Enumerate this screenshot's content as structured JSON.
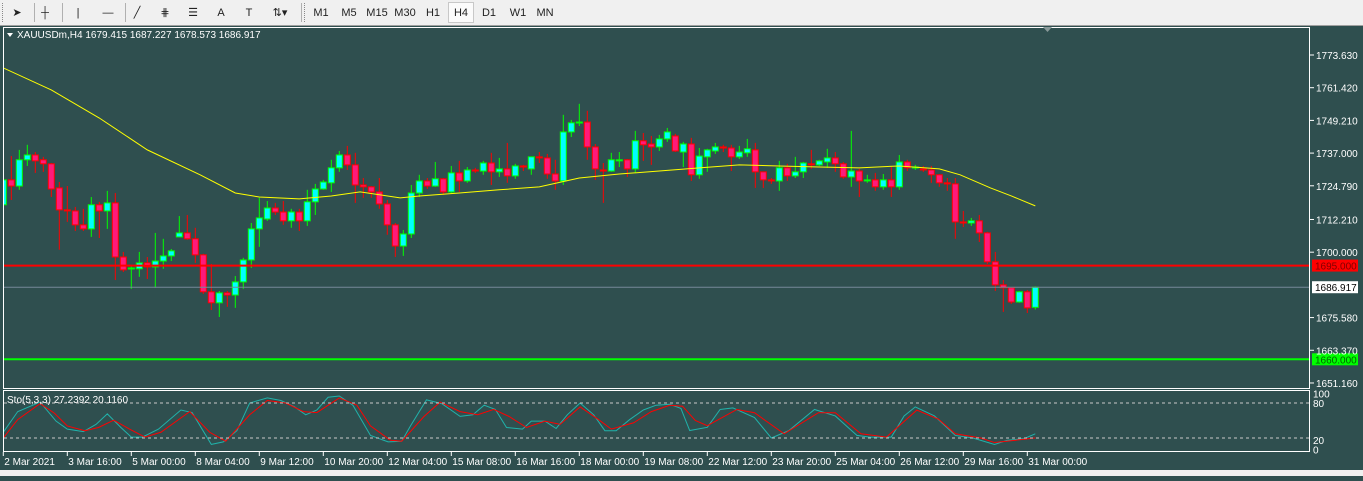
{
  "toolbar": {
    "tools": [
      {
        "name": "cursor-icon",
        "glyph": "➤"
      },
      {
        "name": "crosshair-icon",
        "glyph": "┼"
      },
      {
        "name": "vertical-line-icon",
        "glyph": "|"
      },
      {
        "name": "horizontal-line-icon",
        "glyph": "—"
      },
      {
        "name": "trendline-icon",
        "glyph": "╱"
      },
      {
        "name": "fibonacci-channel-icon",
        "glyph": "⋕"
      },
      {
        "name": "fibonacci-retracement-icon",
        "glyph": "☰"
      },
      {
        "name": "text-icon",
        "glyph": "A"
      },
      {
        "name": "text-label-icon",
        "glyph": "T"
      },
      {
        "name": "arrows-dropdown-icon",
        "glyph": "⇅▾"
      }
    ],
    "timeframes": [
      "M1",
      "M5",
      "M15",
      "M30",
      "H1",
      "H4",
      "D1",
      "W1",
      "MN"
    ],
    "active_timeframe": "H4"
  },
  "chart": {
    "header": "XAUUSDm,H4  1679.415 1687.227 1678.573 1686.917",
    "colors": {
      "background": "#2f4f4f",
      "bull_body": "#00ffff",
      "bull_outline": "#00ff00",
      "bear_body": "#ff1a7a",
      "bear_outline": "#ff0000",
      "ma": "#ffff00",
      "stoch_main": "#20b2aa",
      "stoch_signal": "#ff0000",
      "grid_text": "#ffffff"
    },
    "price_axis_labels": [
      "1773.630",
      "1761.420",
      "1749.210",
      "1737.000",
      "1724.790",
      "1712.210",
      "1700.000",
      "1675.580",
      "1663.370",
      "1651.160"
    ],
    "levels": [
      {
        "name": "resistance-line",
        "price": 1695.0,
        "label": "1695.000",
        "color": "#ff0000",
        "text_color": "#800000"
      },
      {
        "name": "current-price-line",
        "price": 1686.917,
        "label": "1686.917",
        "color": "#778899",
        "text_color": "#000000",
        "label_bg": "#ffffff"
      },
      {
        "name": "support-line",
        "price": 1660.0,
        "label": "1660.000",
        "color": "#00ff00",
        "text_color": "#006400"
      }
    ],
    "time_labels": [
      "2 Mar 2021",
      "3 Mar 16:00",
      "5 Mar 00:00",
      "8 Mar 04:00",
      "9 Mar 12:00",
      "10 Mar 20:00",
      "12 Mar 04:00",
      "15 Mar 08:00",
      "16 Mar 16:00",
      "18 Mar 00:00",
      "19 Mar 08:00",
      "22 Mar 12:00",
      "23 Mar 20:00",
      "25 Mar 04:00",
      "26 Mar 12:00",
      "29 Mar 16:00",
      "31 Mar 00:00"
    ],
    "candles_ohlc": [
      [
        1717.7,
        1733.3,
        1715.0,
        1727.0
      ],
      [
        1727.0,
        1735.9,
        1719.5,
        1724.7
      ],
      [
        1724.7,
        1738.2,
        1723.3,
        1734.5
      ],
      [
        1734.5,
        1740.1,
        1732.2,
        1736.3
      ],
      [
        1736.3,
        1737.4,
        1729.6,
        1734.1
      ],
      [
        1734.5,
        1735.6,
        1730.0,
        1733.0
      ],
      [
        1733.0,
        1733.3,
        1720.6,
        1723.6
      ],
      [
        1724.0,
        1726.2,
        1700.9,
        1715.8
      ],
      [
        1715.8,
        1724.7,
        1711.3,
        1715.4
      ],
      [
        1715.4,
        1716.9,
        1707.9,
        1710.2
      ],
      [
        1710.2,
        1716.2,
        1707.9,
        1708.7
      ],
      [
        1708.7,
        1720.6,
        1705.7,
        1717.7
      ],
      [
        1717.7,
        1718.8,
        1705.3,
        1715.4
      ],
      [
        1715.4,
        1722.9,
        1708.7,
        1718.4
      ],
      [
        1718.4,
        1722.1,
        1689.6,
        1698.2
      ],
      [
        1698.2,
        1700.1,
        1692.6,
        1693.4
      ],
      [
        1693.8,
        1695.2,
        1686.3,
        1694.1
      ],
      [
        1693.8,
        1700.1,
        1690.8,
        1696.0
      ],
      [
        1696.0,
        1698.2,
        1690.0,
        1694.5
      ],
      [
        1694.5,
        1707.2,
        1686.7,
        1696.7
      ],
      [
        1696.7,
        1705.0,
        1693.8,
        1698.6
      ],
      [
        1698.6,
        1701.2,
        1696.7,
        1700.5
      ],
      [
        1705.7,
        1713.5,
        1705.7,
        1707.2
      ],
      [
        1707.2,
        1713.9,
        1704.6,
        1705.0
      ],
      [
        1705.0,
        1709.1,
        1696.0,
        1699.0
      ],
      [
        1699.0,
        1699.4,
        1684.4,
        1685.2
      ],
      [
        1685.2,
        1695.6,
        1678.4,
        1681.1
      ],
      [
        1681.1,
        1685.5,
        1675.8,
        1684.8
      ],
      [
        1684.8,
        1685.5,
        1679.6,
        1684.0
      ],
      [
        1684.0,
        1691.1,
        1679.2,
        1688.9
      ],
      [
        1688.9,
        1697.9,
        1686.3,
        1697.1
      ],
      [
        1697.1,
        1710.9,
        1694.1,
        1708.7
      ],
      [
        1708.7,
        1720.3,
        1702.0,
        1712.8
      ],
      [
        1712.4,
        1719.1,
        1711.7,
        1716.5
      ],
      [
        1716.5,
        1718.4,
        1713.9,
        1715.0
      ],
      [
        1715.0,
        1719.1,
        1710.2,
        1711.7
      ],
      [
        1711.7,
        1716.2,
        1709.1,
        1715.0
      ],
      [
        1715.0,
        1716.2,
        1707.9,
        1711.7
      ],
      [
        1711.7,
        1723.3,
        1709.8,
        1718.8
      ],
      [
        1718.8,
        1725.5,
        1713.9,
        1723.6
      ],
      [
        1723.6,
        1727.0,
        1723.3,
        1726.2
      ],
      [
        1725.9,
        1734.5,
        1722.5,
        1731.5
      ],
      [
        1731.5,
        1737.8,
        1730.0,
        1736.3
      ],
      [
        1736.3,
        1739.7,
        1730.7,
        1732.6
      ],
      [
        1732.6,
        1737.1,
        1718.4,
        1725.1
      ],
      [
        1725.1,
        1727.7,
        1720.3,
        1724.4
      ],
      [
        1724.4,
        1724.7,
        1720.3,
        1722.5
      ],
      [
        1722.5,
        1727.7,
        1716.2,
        1718.0
      ],
      [
        1718.0,
        1719.5,
        1706.5,
        1710.2
      ],
      [
        1710.2,
        1710.9,
        1698.2,
        1702.3
      ],
      [
        1702.3,
        1708.3,
        1698.6,
        1706.8
      ],
      [
        1706.8,
        1725.1,
        1705.3,
        1722.1
      ],
      [
        1722.1,
        1728.9,
        1720.6,
        1726.6
      ],
      [
        1726.6,
        1727.7,
        1723.6,
        1724.7
      ],
      [
        1724.7,
        1733.7,
        1724.4,
        1727.4
      ],
      [
        1727.4,
        1727.7,
        1721.4,
        1722.5
      ],
      [
        1722.5,
        1732.2,
        1722.1,
        1729.6
      ],
      [
        1729.6,
        1734.1,
        1722.5,
        1726.6
      ],
      [
        1726.6,
        1731.8,
        1725.9,
        1730.7
      ],
      [
        1730.7,
        1731.5,
        1729.6,
        1730.3
      ],
      [
        1730.3,
        1734.1,
        1728.9,
        1733.3
      ],
      [
        1733.3,
        1737.1,
        1725.1,
        1730.0
      ],
      [
        1730.0,
        1735.2,
        1728.1,
        1731.1
      ],
      [
        1731.1,
        1740.8,
        1725.9,
        1728.5
      ],
      [
        1728.5,
        1733.0,
        1727.4,
        1732.2
      ],
      [
        1732.2,
        1732.6,
        1730.3,
        1731.8
      ],
      [
        1731.1,
        1735.6,
        1728.9,
        1735.6
      ],
      [
        1735.6,
        1737.4,
        1733.3,
        1735.2
      ],
      [
        1735.2,
        1736.7,
        1727.4,
        1729.2
      ],
      [
        1729.2,
        1734.5,
        1723.3,
        1726.6
      ],
      [
        1726.6,
        1751.3,
        1725.1,
        1744.9
      ],
      [
        1744.9,
        1749.4,
        1743.0,
        1748.3
      ],
      [
        1748.3,
        1755.4,
        1747.1,
        1748.6
      ],
      [
        1748.6,
        1752.8,
        1734.5,
        1739.3
      ],
      [
        1739.3,
        1740.4,
        1727.0,
        1731.1
      ],
      [
        1730.7,
        1733.3,
        1718.4,
        1730.3
      ],
      [
        1730.3,
        1737.1,
        1730.0,
        1734.5
      ],
      [
        1734.1,
        1737.4,
        1731.8,
        1734.5
      ],
      [
        1734.5,
        1734.8,
        1728.1,
        1731.1
      ],
      [
        1731.1,
        1745.3,
        1729.6,
        1741.6
      ],
      [
        1741.6,
        1744.5,
        1734.1,
        1740.1
      ],
      [
        1740.4,
        1743.4,
        1732.6,
        1739.3
      ],
      [
        1739.3,
        1743.8,
        1737.8,
        1742.3
      ],
      [
        1742.3,
        1746.4,
        1741.2,
        1744.9
      ],
      [
        1743.4,
        1744.2,
        1737.4,
        1737.8
      ],
      [
        1737.4,
        1741.2,
        1731.8,
        1740.4
      ],
      [
        1740.4,
        1742.7,
        1726.6,
        1728.9
      ],
      [
        1728.9,
        1738.9,
        1727.4,
        1735.9
      ],
      [
        1735.6,
        1738.6,
        1730.0,
        1738.2
      ],
      [
        1737.8,
        1740.8,
        1736.7,
        1739.3
      ],
      [
        1739.3,
        1740.1,
        1737.4,
        1738.9
      ],
      [
        1738.9,
        1740.1,
        1730.3,
        1735.6
      ],
      [
        1735.6,
        1739.7,
        1734.8,
        1737.4
      ],
      [
        1737.1,
        1742.3,
        1735.6,
        1738.6
      ],
      [
        1738.2,
        1740.8,
        1724.0,
        1730.0
      ],
      [
        1730.0,
        1730.0,
        1724.0,
        1727.0
      ],
      [
        1727.0,
        1727.7,
        1725.5,
        1726.6
      ],
      [
        1726.6,
        1734.1,
        1722.9,
        1731.5
      ],
      [
        1731.5,
        1733.0,
        1726.6,
        1728.5
      ],
      [
        1728.5,
        1735.6,
        1727.7,
        1730.0
      ],
      [
        1730.0,
        1733.7,
        1727.7,
        1733.3
      ],
      [
        1733.0,
        1738.2,
        1731.1,
        1732.6
      ],
      [
        1732.6,
        1734.5,
        1732.2,
        1734.1
      ],
      [
        1733.7,
        1738.6,
        1731.5,
        1735.2
      ],
      [
        1735.2,
        1737.4,
        1730.0,
        1733.0
      ],
      [
        1733.0,
        1733.7,
        1727.4,
        1728.1
      ],
      [
        1728.1,
        1745.3,
        1724.4,
        1730.3
      ],
      [
        1730.3,
        1731.1,
        1720.6,
        1726.6
      ],
      [
        1726.6,
        1728.9,
        1725.9,
        1727.0
      ],
      [
        1727.0,
        1729.6,
        1722.9,
        1724.4
      ],
      [
        1724.4,
        1729.2,
        1723.3,
        1727.0
      ],
      [
        1727.0,
        1731.8,
        1720.6,
        1724.4
      ],
      [
        1724.4,
        1736.3,
        1723.3,
        1733.7
      ],
      [
        1733.7,
        1734.5,
        1730.3,
        1731.5
      ],
      [
        1731.5,
        1732.6,
        1730.7,
        1731.8
      ],
      [
        1731.1,
        1732.2,
        1730.0,
        1730.7
      ],
      [
        1730.7,
        1732.2,
        1725.9,
        1728.9
      ],
      [
        1728.9,
        1729.2,
        1724.4,
        1725.9
      ],
      [
        1725.9,
        1727.7,
        1722.9,
        1725.5
      ],
      [
        1725.5,
        1727.7,
        1705.0,
        1711.3
      ],
      [
        1711.3,
        1715.4,
        1709.4,
        1710.9
      ],
      [
        1710.9,
        1712.8,
        1709.8,
        1711.7
      ],
      [
        1711.7,
        1713.9,
        1703.8,
        1707.2
      ],
      [
        1707.2,
        1707.6,
        1695.6,
        1696.4
      ],
      [
        1696.4,
        1700.1,
        1685.5,
        1687.8
      ],
      [
        1687.8,
        1689.6,
        1677.7,
        1686.7
      ],
      [
        1686.7,
        1686.7,
        1680.7,
        1681.4
      ],
      [
        1681.4,
        1685.5,
        1681.1,
        1685.2
      ],
      [
        1685.2,
        1685.9,
        1677.3,
        1679.2
      ],
      [
        1679.415,
        1687.227,
        1678.573,
        1686.917
      ]
    ],
    "moving_average": [
      [
        0,
        1768.8
      ],
      [
        6,
        1760.6
      ],
      [
        12,
        1750.1
      ],
      [
        18,
        1738.2
      ],
      [
        24.6,
        1728.9
      ],
      [
        29,
        1722.1
      ],
      [
        32,
        1720.6
      ],
      [
        37,
        1719.9
      ],
      [
        41,
        1721.0
      ],
      [
        44.6,
        1722.5
      ],
      [
        49.6,
        1720.3
      ],
      [
        52,
        1721.0
      ],
      [
        57,
        1722.1
      ],
      [
        62,
        1723.3
      ],
      [
        67,
        1724.4
      ],
      [
        72,
        1727.7
      ],
      [
        77,
        1729.2
      ],
      [
        82,
        1730.3
      ],
      [
        87,
        1731.5
      ],
      [
        92,
        1732.6
      ],
      [
        97,
        1732.2
      ],
      [
        102,
        1731.8
      ],
      [
        107,
        1731.5
      ],
      [
        112,
        1732.2
      ],
      [
        117,
        1731.1
      ],
      [
        119.6,
        1728.9
      ],
      [
        123.4,
        1724.0
      ],
      [
        126,
        1721.0
      ],
      [
        129,
        1717.3
      ]
    ]
  },
  "stochastic": {
    "title": "Sto(5,3,3) 27.2392 20.1160",
    "axis_labels": [
      "100",
      "80",
      "20",
      "0"
    ],
    "main": [
      [
        0,
        29.8
      ],
      [
        1.8,
        65.2
      ],
      [
        4.6,
        81.6
      ],
      [
        6.6,
        48.9
      ],
      [
        8,
        35.2
      ],
      [
        10,
        30.9
      ],
      [
        11.6,
        43.4
      ],
      [
        13,
        61.4
      ],
      [
        14.7,
        38
      ],
      [
        16,
        21.6
      ],
      [
        17.4,
        21.6
      ],
      [
        19.4,
        35.2
      ],
      [
        22.2,
        68
      ],
      [
        23.6,
        63.6
      ],
      [
        26,
        9
      ],
      [
        27.5,
        13.4
      ],
      [
        29.2,
        32.5
      ],
      [
        30.8,
        80
      ],
      [
        33,
        88.7
      ],
      [
        34.7,
        84.3
      ],
      [
        36.4,
        73.4
      ],
      [
        37.8,
        59.8
      ],
      [
        39.2,
        68
      ],
      [
        40.6,
        89.8
      ],
      [
        42,
        92
      ],
      [
        43.7,
        76.2
      ],
      [
        45.9,
        24.3
      ],
      [
        48.1,
        13.4
      ],
      [
        49.8,
        14.5
      ],
      [
        50.9,
        40.7
      ],
      [
        52.9,
        85.4
      ],
      [
        54.8,
        78.9
      ],
      [
        57.1,
        57.1
      ],
      [
        58.7,
        59.8
      ],
      [
        60.1,
        76.2
      ],
      [
        61.5,
        69.1
      ],
      [
        62.9,
        38
      ],
      [
        64.9,
        35.2
      ],
      [
        66,
        48.9
      ],
      [
        67.7,
        48.9
      ],
      [
        69.1,
        36.3
      ],
      [
        70.5,
        59.8
      ],
      [
        72.1,
        80
      ],
      [
        73.8,
        59.8
      ],
      [
        75.2,
        32.5
      ],
      [
        76.6,
        32.5
      ],
      [
        78.3,
        51.6
      ],
      [
        80,
        68
      ],
      [
        81.6,
        76.2
      ],
      [
        83.3,
        77.8
      ],
      [
        84.7,
        70.7
      ],
      [
        85.8,
        32.8
      ],
      [
        88,
        38.3
      ],
      [
        89.6,
        68.9
      ],
      [
        91.2,
        71.6
      ],
      [
        93.9,
        55
      ],
      [
        96,
        20
      ],
      [
        98.2,
        32.8
      ],
      [
        101.4,
        68.9
      ],
      [
        104,
        57.8
      ],
      [
        106.7,
        24.4
      ],
      [
        108.3,
        21.6
      ],
      [
        111,
        21.6
      ],
      [
        112.6,
        57.8
      ],
      [
        114,
        73.3
      ],
      [
        116.4,
        57.8
      ],
      [
        119,
        24.4
      ],
      [
        121.2,
        20
      ],
      [
        123.9,
        8.9
      ],
      [
        125.5,
        16.1
      ],
      [
        127.6,
        18.9
      ],
      [
        129,
        27.24
      ]
    ],
    "signal": [
      [
        0,
        20
      ],
      [
        1.8,
        51.6
      ],
      [
        4.6,
        78.9
      ],
      [
        6.4,
        62.5
      ],
      [
        8,
        40.7
      ],
      [
        10.2,
        32.5
      ],
      [
        11.9,
        38
      ],
      [
        13.8,
        50.5
      ],
      [
        15.8,
        35.2
      ],
      [
        17.7,
        21.6
      ],
      [
        19.7,
        29.8
      ],
      [
        23.3,
        65.2
      ],
      [
        25.8,
        29.8
      ],
      [
        27.8,
        14.5
      ],
      [
        30.8,
        59.8
      ],
      [
        33,
        84.3
      ],
      [
        35.3,
        80
      ],
      [
        37.5,
        65.2
      ],
      [
        39.2,
        63.6
      ],
      [
        42,
        88.7
      ],
      [
        44.2,
        76.2
      ],
      [
        45.9,
        40.7
      ],
      [
        48.4,
        16.1
      ],
      [
        49.8,
        14.5
      ],
      [
        52.6,
        57.1
      ],
      [
        54.6,
        81.6
      ],
      [
        57.1,
        65.2
      ],
      [
        59.3,
        59.8
      ],
      [
        61.3,
        69.1
      ],
      [
        63.2,
        57.1
      ],
      [
        65.4,
        38
      ],
      [
        67.7,
        48.9
      ],
      [
        69.6,
        43.4
      ],
      [
        72.1,
        73.4
      ],
      [
        74.4,
        51.6
      ],
      [
        76,
        35.2
      ],
      [
        78.8,
        46.1
      ],
      [
        81,
        65.2
      ],
      [
        83.3,
        76.2
      ],
      [
        84.9,
        74.5
      ],
      [
        86.5,
        50
      ],
      [
        88,
        41.1
      ],
      [
        91.7,
        68.9
      ],
      [
        93.9,
        63.3
      ],
      [
        97.6,
        27.2
      ],
      [
        101.9,
        63.3
      ],
      [
        104,
        63.3
      ],
      [
        107.2,
        27.2
      ],
      [
        110.4,
        21.6
      ],
      [
        114.2,
        67.8
      ],
      [
        116.9,
        52.2
      ],
      [
        119,
        27.2
      ],
      [
        122.2,
        20
      ],
      [
        123.9,
        12.2
      ],
      [
        127.6,
        17.8
      ],
      [
        129,
        20.12
      ]
    ]
  }
}
